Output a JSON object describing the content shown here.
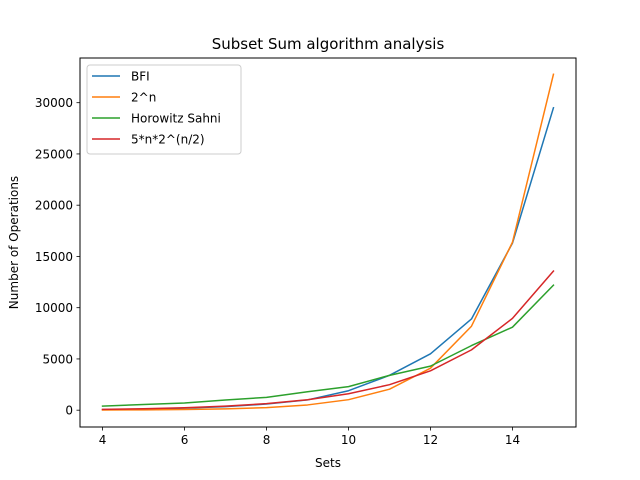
{
  "chart_data": {
    "type": "line",
    "title": "Subset Sum algorithm analysis",
    "xlabel": "Sets",
    "ylabel": "Number of Operations",
    "xlim": [
      3.45,
      15.55
    ],
    "ylim": [
      -1640,
      34360
    ],
    "x": [
      4,
      5,
      6,
      7,
      8,
      9,
      10,
      11,
      12,
      13,
      14,
      15
    ],
    "x_ticks": [
      4,
      6,
      8,
      10,
      12,
      14
    ],
    "y_ticks": [
      0,
      5000,
      10000,
      15000,
      20000,
      25000,
      30000
    ],
    "grid": false,
    "legend_position": "top-left",
    "series": [
      {
        "name": "BFI",
        "color": "#1f77b4",
        "values": [
          60,
          100,
          200,
          350,
          600,
          1000,
          1900,
          3400,
          5500,
          8900,
          16300,
          29500
        ]
      },
      {
        "name": "2^n",
        "color": "#ff7f0e",
        "values": [
          16,
          32,
          64,
          128,
          256,
          512,
          1024,
          2048,
          4096,
          8192,
          16384,
          32768
        ]
      },
      {
        "name": "Horowitz Sahni",
        "color": "#2ca02c",
        "values": [
          400,
          560,
          700,
          1000,
          1250,
          1800,
          2300,
          3400,
          4300,
          6300,
          8100,
          12200
        ]
      },
      {
        "name": "5*n*2^(n/2)",
        "color": "#d62728",
        "values": [
          80,
          141,
          240,
          396,
          640,
          1018,
          1600,
          2489,
          3840,
          5883,
          8960,
          13577
        ]
      }
    ]
  }
}
